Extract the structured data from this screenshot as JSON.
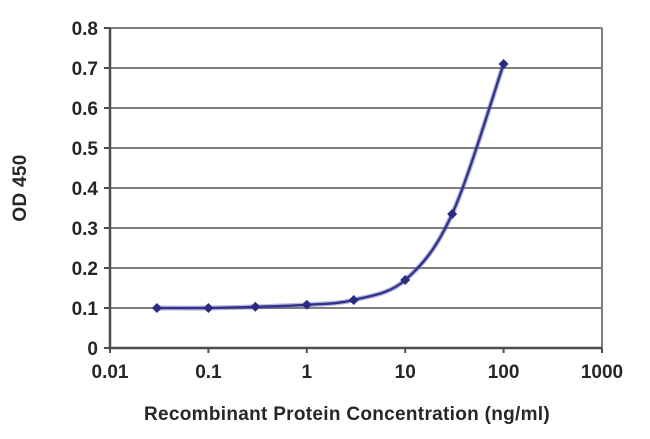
{
  "chart_data": {
    "type": "line",
    "title": "",
    "xlabel": "Recombinant Protein Concentration (ng/ml)",
    "ylabel": "OD 450",
    "x_scale": "log",
    "xlim": [
      0.01,
      1000
    ],
    "ylim": [
      0,
      0.8
    ],
    "x_ticks": [
      0.01,
      0.1,
      1,
      10,
      100,
      1000
    ],
    "x_tick_labels": [
      "0.01",
      "0.1",
      "1",
      "10",
      "100",
      "1000"
    ],
    "y_ticks": [
      0,
      0.1,
      0.2,
      0.3,
      0.4,
      0.5,
      0.6,
      0.7,
      0.8
    ],
    "y_tick_labels": [
      "0",
      "0.1",
      "0.2",
      "0.3",
      "0.4",
      "0.5",
      "0.6",
      "0.7",
      "0.8"
    ],
    "grid": "horizontal",
    "legend": "none",
    "series": [
      {
        "name": "OD 450",
        "x": [
          0.03,
          0.1,
          0.3,
          1,
          3,
          10,
          30,
          100
        ],
        "y": [
          0.1,
          0.1,
          0.103,
          0.108,
          0.12,
          0.17,
          0.335,
          0.71
        ],
        "marker": "diamond",
        "line_color": "#32328e",
        "line_halo_color": "rgba(100,100,175,0.45)",
        "marker_color": "#2b2b84",
        "smoothed": true
      }
    ],
    "colors": {
      "gridline": "#7f7f7f",
      "axis": "#4d4d4d",
      "tick_text": "#262626",
      "plot_background": "#ffffff",
      "figure_background": "#ffffff"
    }
  }
}
